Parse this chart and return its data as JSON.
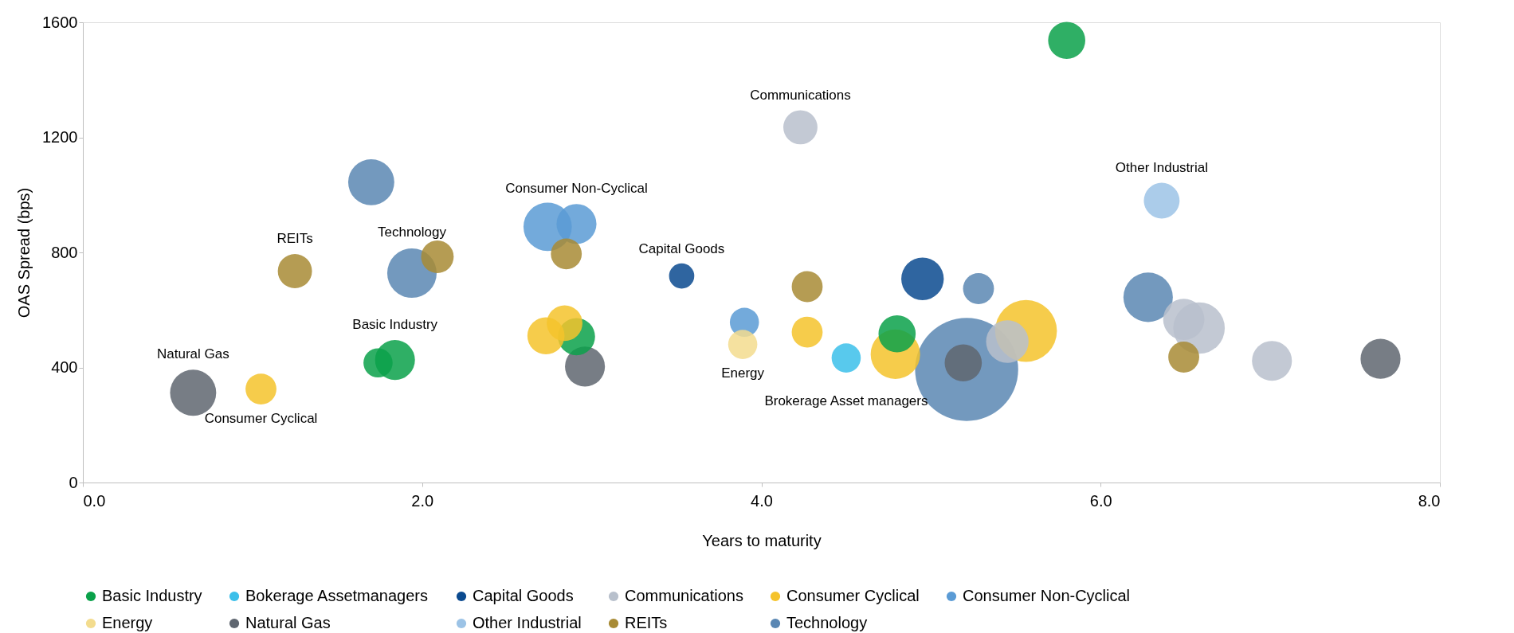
{
  "chart_data": {
    "type": "bubble",
    "xlabel": "Years to maturity",
    "ylabel": "OAS Spread (bps)",
    "xlim": [
      0,
      8
    ],
    "xticks": [
      {
        "value": 0,
        "label": "0.0"
      },
      {
        "value": 2,
        "label": "2.0"
      },
      {
        "value": 4,
        "label": "4.0"
      },
      {
        "value": 6,
        "label": "6.0"
      },
      {
        "value": 8,
        "label": "8.0"
      }
    ],
    "ylim": [
      0,
      1600
    ],
    "yticks": [
      0,
      400,
      800,
      1200,
      1600
    ],
    "grid": false,
    "legend": "bottom",
    "series": [
      {
        "name": "Basic Industry",
        "color": "#0aa14a",
        "x": [
          5.8,
          1.84,
          1.74,
          2.91,
          4.8
        ],
        "values": [
          1537,
          426,
          416,
          507,
          517
        ],
        "sizes": [
          0.13,
          0.15,
          0.08,
          0.13,
          0.13
        ]
      },
      {
        "name": "Bokerage Assetmanagers",
        "color": "#3bbfea",
        "x": [
          4.5
        ],
        "values": [
          433
        ],
        "sizes": [
          0.08
        ]
      },
      {
        "name": "Capital Goods",
        "color": "#0b4a8f",
        "x": [
          3.53,
          4.95
        ],
        "values": [
          718,
          708
        ],
        "sizes": [
          0.06,
          0.17
        ]
      },
      {
        "name": "Communications",
        "color": "#b8c0cc",
        "x": [
          4.23,
          6.49,
          6.58,
          7.01,
          5.45
        ],
        "values": [
          1235,
          567,
          537,
          423,
          490
        ],
        "sizes": [
          0.11,
          0.16,
          0.25,
          0.15,
          0.17
        ]
      },
      {
        "name": "Consumer Cyclical",
        "color": "#f5c32c",
        "x": [
          1.05,
          2.73,
          2.84,
          4.27,
          4.79,
          5.56
        ],
        "values": [
          325,
          510,
          554,
          523,
          446,
          527
        ],
        "sizes": [
          0.09,
          0.13,
          0.12,
          0.09,
          0.23,
          0.36
        ]
      },
      {
        "name": "Consumer Non-Cyclical",
        "color": "#5b9bd5",
        "x": [
          2.74,
          2.91,
          3.9
        ],
        "values": [
          889,
          899,
          557
        ],
        "sizes": [
          0.22,
          0.15,
          0.08
        ]
      },
      {
        "name": "Energy",
        "color": "#f3dc8e",
        "x": [
          3.89
        ],
        "values": [
          480
        ],
        "sizes": [
          0.08
        ]
      },
      {
        "name": "Natural Gas",
        "color": "#5f6670",
        "x": [
          0.65,
          2.96,
          5.19,
          7.65
        ],
        "values": [
          312,
          403,
          416,
          430
        ],
        "sizes": [
          0.2,
          0.15,
          0.13,
          0.15
        ]
      },
      {
        "name": "Other Industrial",
        "color": "#9cc3e6",
        "x": [
          6.36
        ],
        "values": [
          980
        ],
        "sizes": [
          0.12
        ]
      },
      {
        "name": "REITs",
        "color": "#a88b35",
        "x": [
          1.25,
          2.09,
          2.85,
          4.27,
          6.49
        ],
        "values": [
          735,
          785,
          795,
          681,
          436
        ],
        "sizes": [
          0.11,
          0.1,
          0.09,
          0.09,
          0.09
        ]
      },
      {
        "name": "Technology",
        "color": "#5a87b3",
        "x": [
          1.7,
          1.94,
          5.28,
          6.28,
          5.21
        ],
        "values": [
          1044,
          728,
          674,
          644,
          393
        ],
        "sizes": [
          0.2,
          0.23,
          0.09,
          0.23,
          1
        ]
      }
    ],
    "annotations": [
      {
        "text": "Natural Gas",
        "x": 0.65,
        "y": 312
      },
      {
        "text": "Consumer Cyclical",
        "x": 1.05,
        "y": 325
      },
      {
        "text": "Basic Industry",
        "x": 1.84,
        "y": 426
      },
      {
        "text": "REITs",
        "x": 1.25,
        "y": 735
      },
      {
        "text": "Technology",
        "x": 1.94,
        "y": 728
      },
      {
        "text": "Consumer Non-Cyclical",
        "x": 2.91,
        "y": 899
      },
      {
        "text": "Capital Goods",
        "x": 3.53,
        "y": 718
      },
      {
        "text": "Communications",
        "x": 4.23,
        "y": 1235
      },
      {
        "text": "Energy",
        "x": 3.89,
        "y": 480
      },
      {
        "text": "Brokerage Asset managers",
        "x": 4.5,
        "y": 433
      },
      {
        "text": "Other Industrial",
        "x": 6.36,
        "y": 980
      }
    ]
  }
}
